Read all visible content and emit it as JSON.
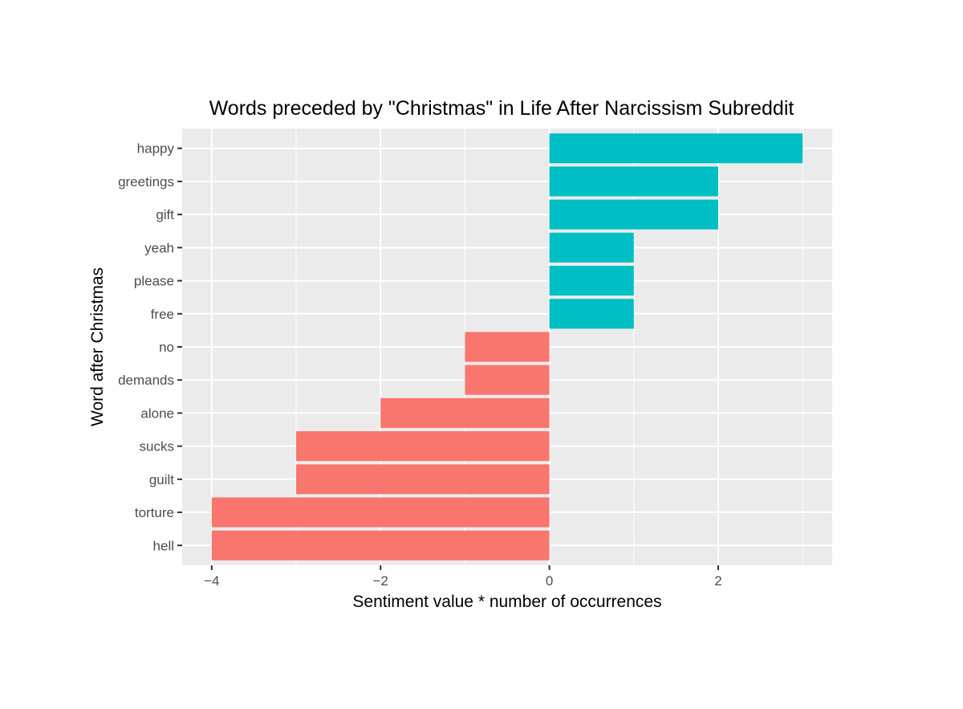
{
  "chart_data": {
    "type": "bar",
    "orientation": "horizontal",
    "title": "Words preceded by \"Christmas\" in Life After Narcissism Subreddit",
    "xlabel": "Sentiment value * number of occurrences",
    "ylabel": "Word after Christmas",
    "categories": [
      "happy",
      "greetings",
      "gift",
      "yeah",
      "please",
      "free",
      "no",
      "demands",
      "alone",
      "sucks",
      "guilt",
      "torture",
      "hell"
    ],
    "values": [
      3,
      2,
      2,
      1,
      1,
      1,
      -1,
      -1,
      -2,
      -3,
      -3,
      -4,
      -4
    ],
    "xlim": [
      -4.35,
      3.35
    ],
    "xticks": [
      -4,
      -2,
      0,
      2
    ],
    "xtick_labels": [
      "−4",
      "−2",
      "0",
      "2"
    ],
    "grid": true,
    "legend": "none",
    "colors": {
      "positive": "#00BFC4",
      "negative": "#F8766D",
      "panel": "#EBEBEB",
      "grid": "#FFFFFF",
      "tick_text": "#4D4D4D",
      "tick_mark": "#333333"
    }
  }
}
